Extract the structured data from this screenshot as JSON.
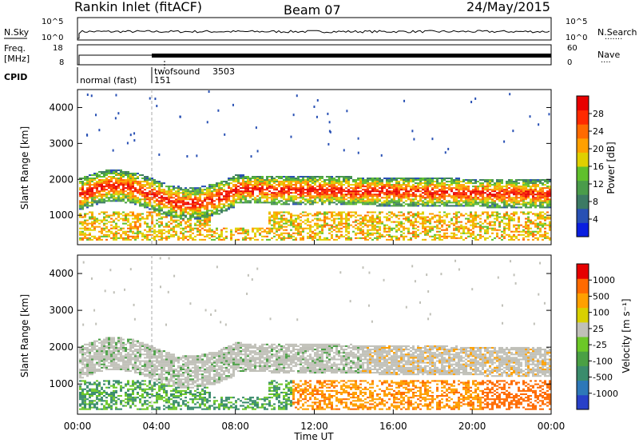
{
  "header": {
    "title": "Rankin Inlet (fitACF)",
    "beam": "Beam 07",
    "date": "24/May/2015"
  },
  "top_panels": {
    "nsky": {
      "label": "N.Sky",
      "ytick_top": "10^5",
      "ytick_bottom": "10^0",
      "right_label": "N.Search",
      "right_tick_top": "10^5",
      "right_tick_bottom": "10^0"
    },
    "freq": {
      "label_line1": "Freq.",
      "label_line2": "[MHz]",
      "ytick_top": "18",
      "ytick_bottom": "8",
      "right_label": "Nave",
      "right_tick_top": "60",
      "right_tick_bottom": "0"
    },
    "cpid": {
      "label": "CPID",
      "segments": [
        {
          "name": "normal (fast)",
          "id": "151"
        },
        {
          "name": "twofsound",
          "id": "3503"
        }
      ]
    }
  },
  "chart_data": [
    {
      "type": "heatmap",
      "panel": "power",
      "ylabel": "Slant Range [km]",
      "yticks": [
        "1000",
        "2000",
        "3000",
        "4000"
      ],
      "ylim": [
        180,
        4500
      ],
      "colorbar_label": "Power [dB]",
      "colorbar_ticks": [
        "4",
        "8",
        "12",
        "16",
        "20",
        "24",
        "28"
      ],
      "colors": [
        "#0a1ee0",
        "#2850b4",
        "#3c7a64",
        "#4a9c4a",
        "#60c02c",
        "#e0d000",
        "#ffa000",
        "#ff6a00",
        "#ff2a00",
        "#e80000"
      ]
    },
    {
      "type": "heatmap",
      "panel": "velocity",
      "ylabel": "Slant Range [km]",
      "yticks": [
        "1000",
        "2000",
        "3000",
        "4000"
      ],
      "ylim": [
        180,
        4500
      ],
      "colorbar_label": "Velocity [m s⁻¹]",
      "colorbar_ticks": [
        "1000",
        "500",
        "100",
        "25",
        "-25",
        "-100",
        "-500",
        "-1000"
      ],
      "colors": [
        "#2840c8",
        "#2e78b8",
        "#3a8c6c",
        "#4aa044",
        "#6cc828",
        "#c0c0b8",
        "#d8d000",
        "#ffa000",
        "#ff6a00",
        "#e60000"
      ]
    }
  ],
  "xaxis": {
    "label": "Time UT",
    "ticks": [
      "00:00",
      "04:00",
      "08:00",
      "12:00",
      "16:00",
      "20:00",
      "00:00"
    ]
  }
}
